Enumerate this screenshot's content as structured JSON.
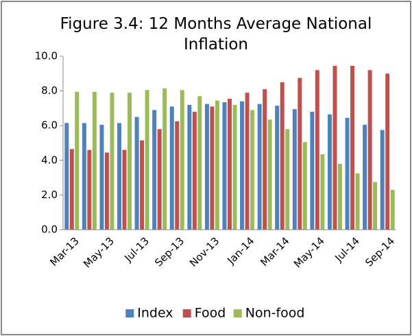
{
  "chart_data": {
    "type": "bar",
    "title": "Figure 3.4: 12 Months Average National Inflation",
    "categories": [
      "Mar-13",
      null,
      "May-13",
      null,
      "Jul-13",
      null,
      "Sep-13",
      null,
      "Nov-13",
      null,
      "Jan-14",
      null,
      "Mar-14",
      null,
      "May-14",
      null,
      "Jul-14",
      null,
      "Sep-14"
    ],
    "series": [
      {
        "name": "Index",
        "color": "#4f81bd",
        "values": [
          6.15,
          6.15,
          6.05,
          6.15,
          6.5,
          6.9,
          7.1,
          7.2,
          7.25,
          7.35,
          7.4,
          7.25,
          7.15,
          6.95,
          6.8,
          6.65,
          6.45,
          6.05,
          5.75
        ]
      },
      {
        "name": "Food",
        "color": "#c0504d",
        "values": [
          4.65,
          4.6,
          4.45,
          4.6,
          5.15,
          5.8,
          6.25,
          6.8,
          7.1,
          7.55,
          7.9,
          8.1,
          8.5,
          8.75,
          9.2,
          9.45,
          9.45,
          9.2,
          9.0
        ]
      },
      {
        "name": "Non-food",
        "color": "#9bbb59",
        "values": [
          7.95,
          7.95,
          7.9,
          7.9,
          8.05,
          8.15,
          8.05,
          7.7,
          7.45,
          7.2,
          6.9,
          6.35,
          5.8,
          5.05,
          4.35,
          3.8,
          3.25,
          2.75,
          2.3
        ]
      }
    ],
    "ylim": [
      0,
      10
    ],
    "yticks": [
      {
        "value": 0,
        "label": "0.0"
      },
      {
        "value": 2,
        "label": "2.0"
      },
      {
        "value": 4,
        "label": "4.0"
      },
      {
        "value": 6,
        "label": "6.0"
      },
      {
        "value": 8,
        "label": "8.0"
      },
      {
        "value": 10,
        "label": "10.0"
      }
    ],
    "legend": "bottom"
  }
}
